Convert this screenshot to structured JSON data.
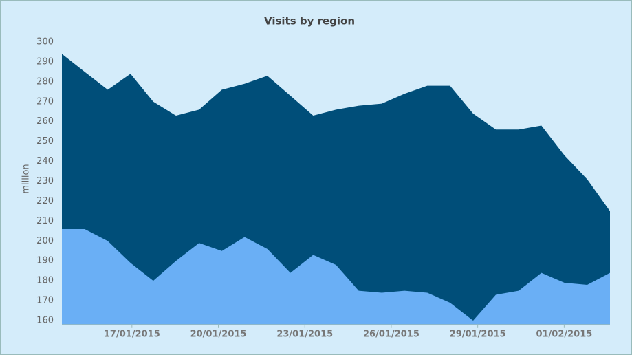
{
  "chart_data": {
    "type": "area",
    "title": "Visits by region",
    "y_label": "million",
    "x": [
      14.57,
      15.36,
      16.16,
      16.95,
      17.74,
      18.53,
      19.33,
      20.12,
      20.91,
      21.7,
      22.5,
      23.29,
      24.08,
      24.87,
      25.67,
      26.46,
      27.25,
      28.04,
      28.84,
      29.63,
      30.42,
      31.21,
      32.01,
      32.8,
      33.59
    ],
    "series": [
      {
        "color": "#004e79",
        "values": [
          294,
          285,
          276,
          284,
          270,
          263,
          266,
          276,
          279,
          283,
          273,
          263,
          266,
          268,
          269,
          274,
          278,
          278,
          264,
          256,
          256,
          258,
          243,
          231,
          215
        ]
      },
      {
        "color": "#6aaff5",
        "values": [
          206,
          206,
          200,
          189,
          180,
          190,
          199,
          195,
          202,
          196,
          184,
          193,
          188,
          175,
          174,
          175,
          174,
          169,
          160,
          173,
          175,
          184,
          179,
          178,
          184
        ]
      }
    ],
    "xlim": [
      14.57,
      33.59
    ],
    "xticks": [
      {
        "value": 17,
        "label": "17/01/2015"
      },
      {
        "value": 20,
        "label": "20/01/2015"
      },
      {
        "value": 23,
        "label": "23/01/2015"
      },
      {
        "value": 26,
        "label": "26/01/2015"
      },
      {
        "value": 29,
        "label": "29/01/2015"
      },
      {
        "value": 32,
        "label": "01/02/2015"
      }
    ],
    "ylim": [
      158,
      300
    ],
    "yticks": [
      160,
      170,
      180,
      190,
      200,
      210,
      220,
      230,
      240,
      250,
      260,
      270,
      280,
      290,
      300
    ]
  }
}
